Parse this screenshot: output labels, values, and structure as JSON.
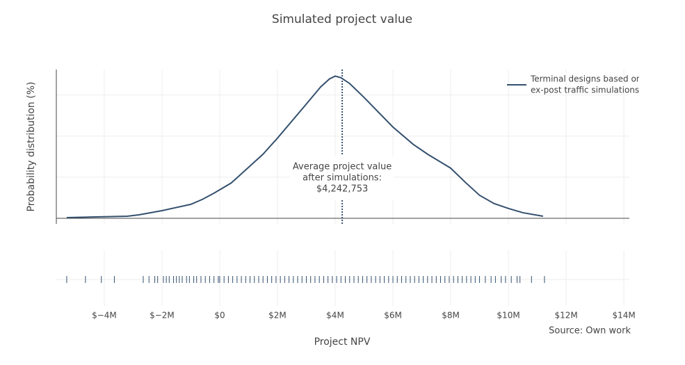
{
  "chart_data": {
    "type": "distplot",
    "title": "Simulated project value",
    "x_label": "Project NPV",
    "y_label": "Probability distribution (%)",
    "source": "Source: Own work",
    "series": [
      {
        "name": [
          "Terminal designs based on",
          "ex-post traffic simulations"
        ],
        "color": "#34506e",
        "x": [
          -5300000,
          -3200000,
          -2800000,
          -2000000,
          -1000000,
          -600000,
          -200000,
          400000,
          1000000,
          1500000,
          2000000,
          3000000,
          3500000,
          3800000,
          4000000,
          4200000,
          4500000,
          5000000,
          6000000,
          6700000,
          7200000,
          8000000,
          8500000,
          9000000,
          9500000,
          10000000,
          10500000,
          11200000
        ],
        "values": [
          0.08,
          0.25,
          0.42,
          0.93,
          1.7,
          2.3,
          3.05,
          4.3,
          6.2,
          7.8,
          9.75,
          13.9,
          16.0,
          16.95,
          17.3,
          17.1,
          16.4,
          14.7,
          11.1,
          9.0,
          7.8,
          6.1,
          4.4,
          2.8,
          1.8,
          1.2,
          0.68,
          0.25
        ]
      }
    ],
    "rug": [
      -5300000,
      -4650000,
      -4100000,
      -3650000,
      -2650000,
      -2450000,
      -2250000,
      -2150000,
      -1950000,
      -1850000,
      -1750000,
      -1600000,
      -1500000,
      -1400000,
      -1300000,
      -1150000,
      -1050000,
      -900000,
      -800000,
      -650000,
      -500000,
      -350000,
      -200000,
      -50000,
      0,
      150000,
      300000,
      450000,
      600000,
      750000,
      900000,
      1050000,
      1200000,
      1350000,
      1500000,
      1650000,
      1800000,
      1950000,
      2100000,
      2250000,
      2400000,
      2550000,
      2700000,
      2850000,
      3000000,
      3150000,
      3300000,
      3450000,
      3600000,
      3750000,
      3900000,
      4050000,
      4200000,
      4350000,
      4500000,
      4650000,
      4800000,
      4950000,
      5100000,
      5250000,
      5400000,
      5550000,
      5700000,
      5850000,
      6000000,
      6150000,
      6300000,
      6450000,
      6600000,
      6750000,
      6900000,
      7050000,
      7200000,
      7350000,
      7500000,
      7650000,
      7800000,
      7950000,
      8100000,
      8250000,
      8400000,
      8550000,
      8700000,
      8850000,
      9000000,
      9200000,
      9400000,
      9550000,
      9750000,
      9900000,
      10100000,
      10300000,
      10400000,
      10800000,
      11250000
    ],
    "mean_line": {
      "value": 4242753,
      "label": [
        "Average project value",
        "after simulations:",
        "$4,242,753"
      ]
    },
    "xlim": [
      -5660000,
      14190000
    ],
    "xticks": [
      {
        "value": -4000000,
        "label": "$−4M"
      },
      {
        "value": -2000000,
        "label": "$−2M"
      },
      {
        "value": 0,
        "label": "$0"
      },
      {
        "value": 2000000,
        "label": "$2M"
      },
      {
        "value": 4000000,
        "label": "$4M"
      },
      {
        "value": 6000000,
        "label": "$6M"
      },
      {
        "value": 8000000,
        "label": "$8M"
      },
      {
        "value": 10000000,
        "label": "$10M"
      },
      {
        "value": 12000000,
        "label": "$12M"
      },
      {
        "value": 14000000,
        "label": "$14M"
      }
    ],
    "ylim": [
      -0.68,
      18.1
    ],
    "yticks": [
      0,
      5,
      10,
      15
    ],
    "grid": true,
    "legend": "top-right"
  }
}
